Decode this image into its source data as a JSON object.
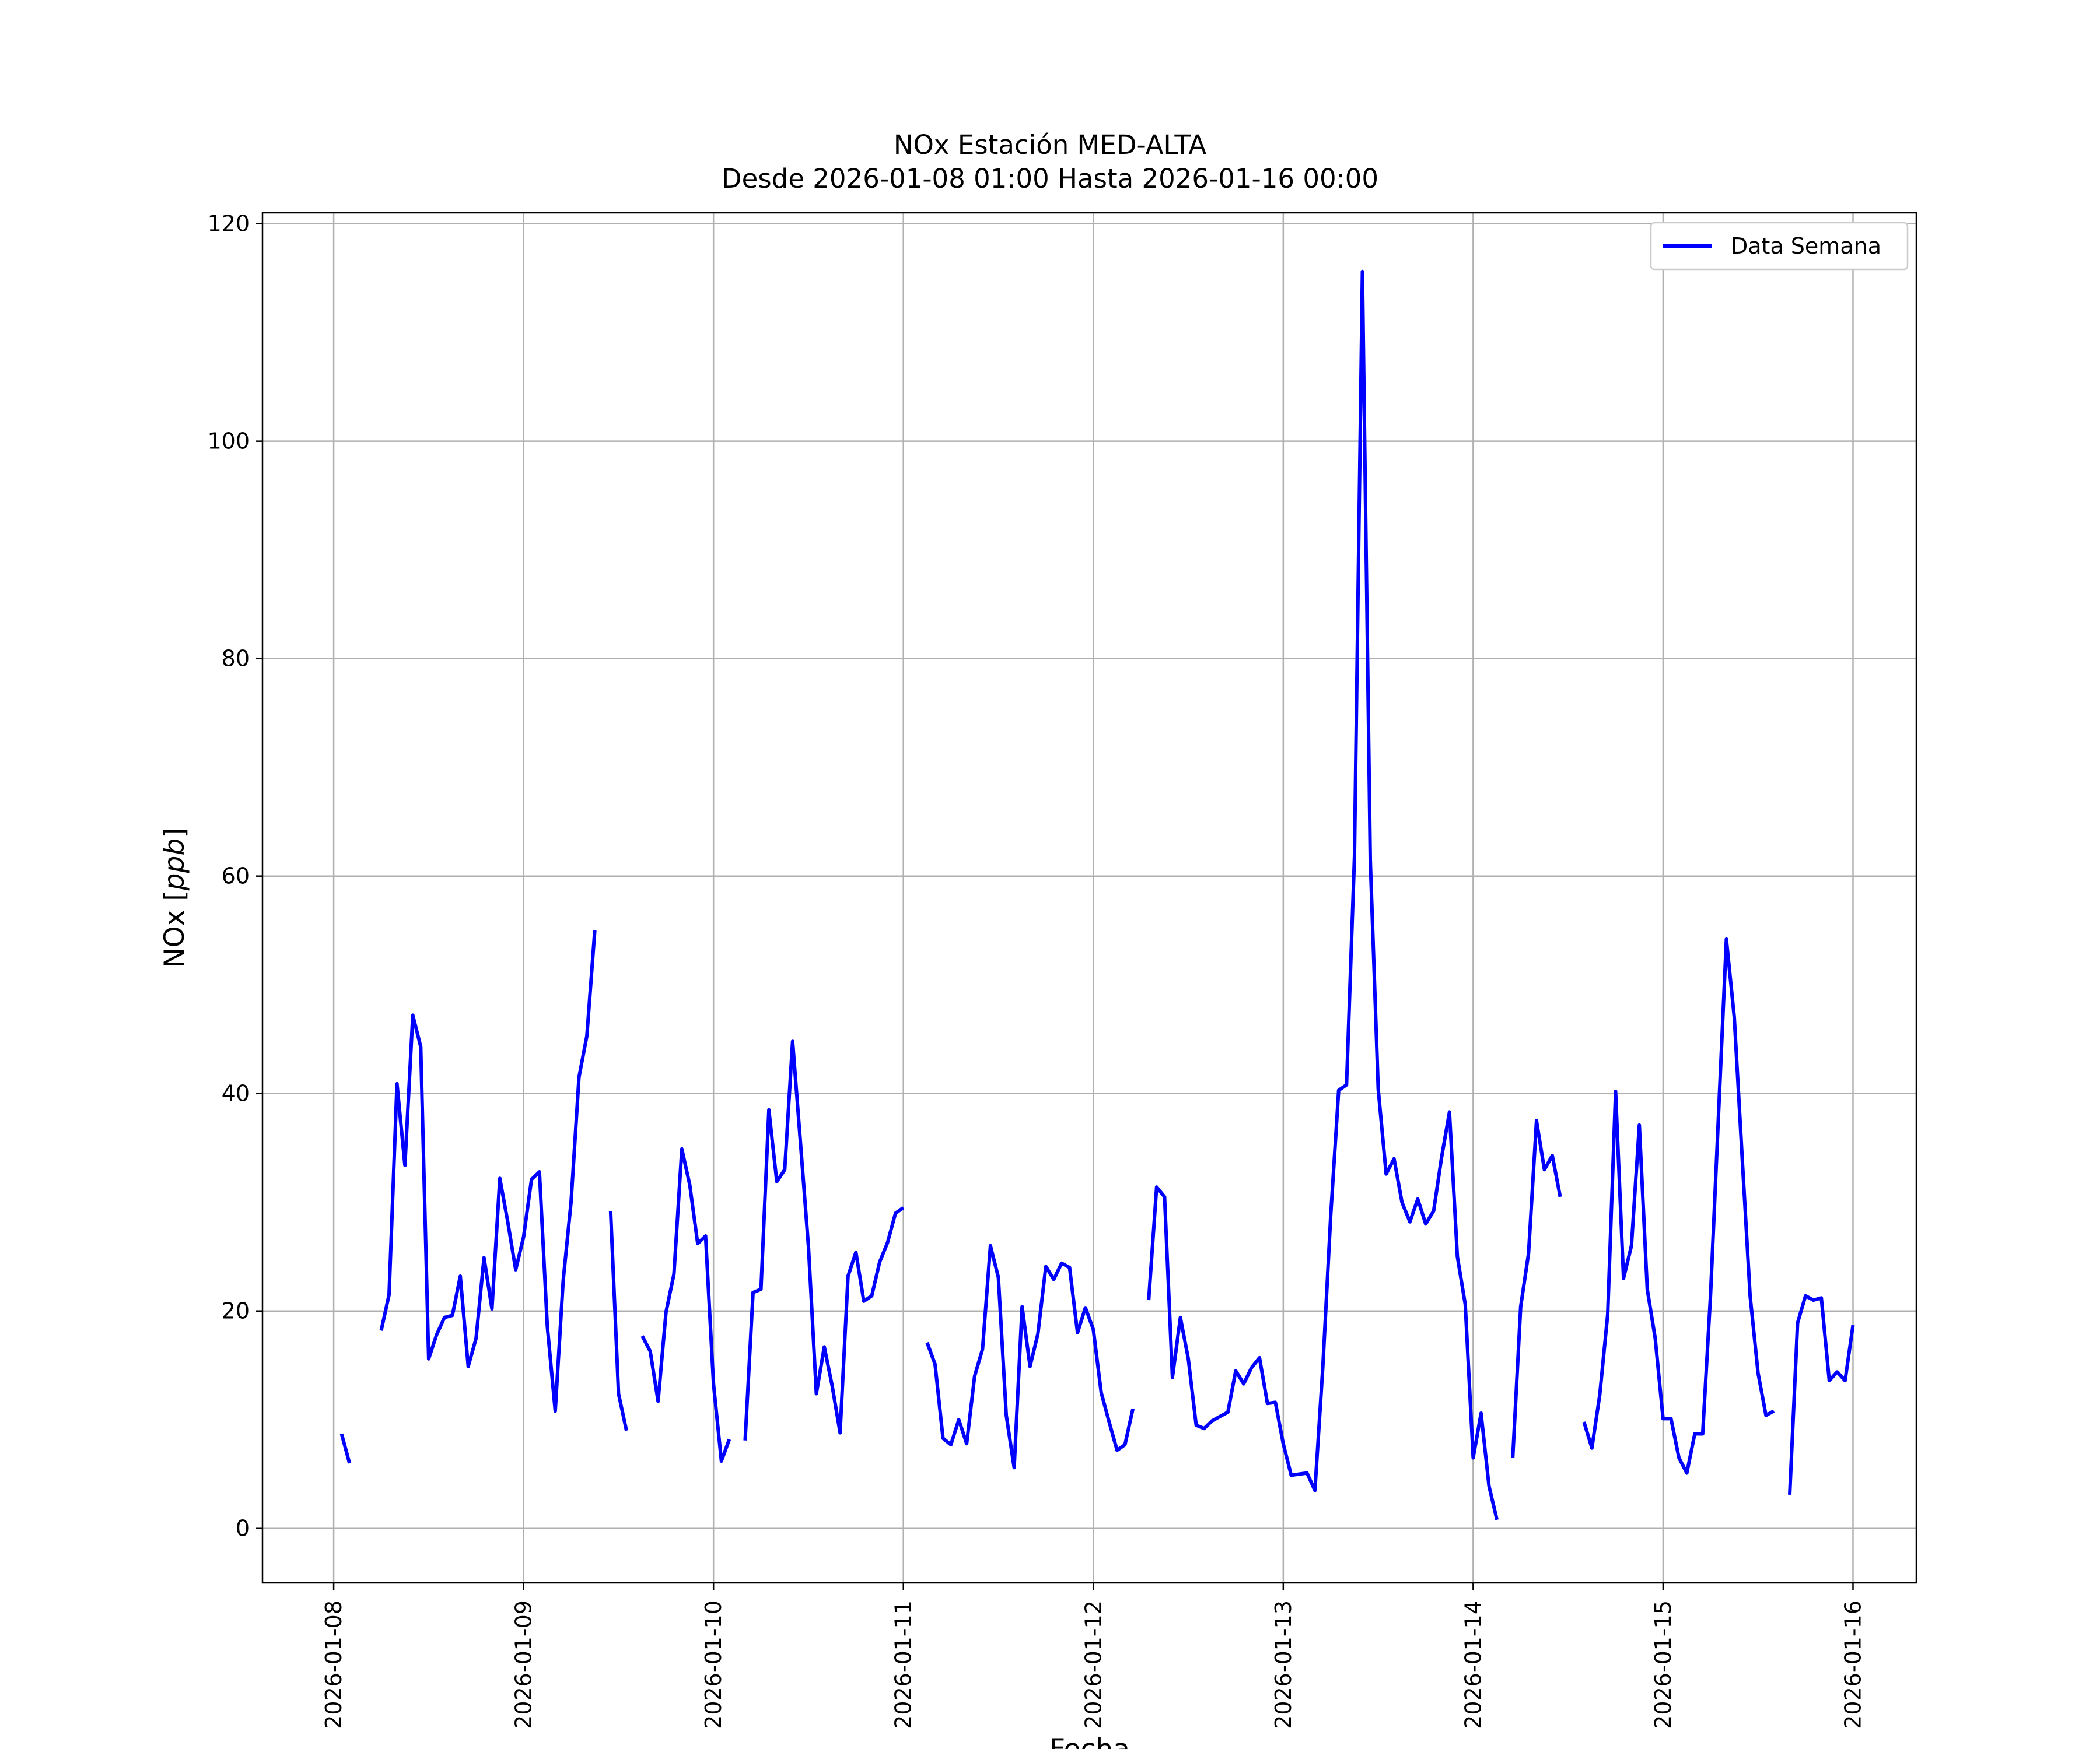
{
  "chart_data": {
    "type": "line",
    "title": "NOx Estación MED-ALTA",
    "subtitle": "Desde 2026-01-08 01:00 Hasta 2026-01-16 00:00",
    "xlabel": "Fecha",
    "ylabel": "NOx [ppb]",
    "ylim": [
      -5,
      121
    ],
    "xlim": [
      "2026-01-07 15:00",
      "2026-01-16 08:00"
    ],
    "x_ticks": [
      "2026-01-08",
      "2026-01-09",
      "2026-01-10",
      "2026-01-11",
      "2026-01-12",
      "2026-01-13",
      "2026-01-14",
      "2026-01-15",
      "2026-01-16"
    ],
    "y_ticks": [
      0,
      20,
      40,
      60,
      80,
      100,
      120
    ],
    "grid": true,
    "legend_position": "top-right",
    "colors": {
      "series": "#0000ff",
      "grid": "#b0b0b0",
      "axes": "#000000"
    },
    "series": [
      {
        "name": "Data Semana",
        "points": [
          [
            "2026-01-08 01:00",
            8.7
          ],
          [
            "2026-01-08 02:00",
            6.0
          ],
          [
            "2026-01-08 03:00",
            null
          ],
          [
            "2026-01-08 04:00",
            null
          ],
          [
            "2026-01-08 05:00",
            null
          ],
          [
            "2026-01-08 06:00",
            18.2
          ],
          [
            "2026-01-08 07:00",
            21.5
          ],
          [
            "2026-01-08 08:00",
            40.9
          ],
          [
            "2026-01-08 09:00",
            33.4
          ],
          [
            "2026-01-08 10:00",
            47.2
          ],
          [
            "2026-01-08 11:00",
            44.3
          ],
          [
            "2026-01-08 12:00",
            15.6
          ],
          [
            "2026-01-08 13:00",
            17.8
          ],
          [
            "2026-01-08 14:00",
            19.4
          ],
          [
            "2026-01-08 15:00",
            19.6
          ],
          [
            "2026-01-08 16:00",
            23.2
          ],
          [
            "2026-01-08 17:00",
            14.9
          ],
          [
            "2026-01-08 18:00",
            17.5
          ],
          [
            "2026-01-08 19:00",
            24.9
          ],
          [
            "2026-01-08 20:00",
            20.2
          ],
          [
            "2026-01-08 21:00",
            32.2
          ],
          [
            "2026-01-08 22:00",
            28.2
          ],
          [
            "2026-01-08 23:00",
            23.8
          ],
          [
            "2026-01-09 00:00",
            26.8
          ],
          [
            "2026-01-09 01:00",
            32.1
          ],
          [
            "2026-01-09 02:00",
            32.8
          ],
          [
            "2026-01-09 03:00",
            18.6
          ],
          [
            "2026-01-09 04:00",
            10.8
          ],
          [
            "2026-01-09 05:00",
            22.8
          ],
          [
            "2026-01-09 06:00",
            30.0
          ],
          [
            "2026-01-09 07:00",
            41.5
          ],
          [
            "2026-01-09 08:00",
            45.3
          ],
          [
            "2026-01-09 09:00",
            55.0
          ],
          [
            "2026-01-09 10:00",
            null
          ],
          [
            "2026-01-09 11:00",
            29.2
          ],
          [
            "2026-01-09 12:00",
            12.4
          ],
          [
            "2026-01-09 13:00",
            9.0
          ],
          [
            "2026-01-09 14:00",
            null
          ],
          [
            "2026-01-09 15:00",
            17.7
          ],
          [
            "2026-01-09 16:00",
            16.3
          ],
          [
            "2026-01-09 17:00",
            11.7
          ],
          [
            "2026-01-09 18:00",
            19.9
          ],
          [
            "2026-01-09 19:00",
            23.4
          ],
          [
            "2026-01-09 20:00",
            34.9
          ],
          [
            "2026-01-09 21:00",
            31.6
          ],
          [
            "2026-01-09 22:00",
            26.2
          ],
          [
            "2026-01-09 23:00",
            26.9
          ],
          [
            "2026-01-10 00:00",
            13.3
          ],
          [
            "2026-01-10 01:00",
            6.2
          ],
          [
            "2026-01-10 02:00",
            8.2
          ],
          [
            "2026-01-10 03:00",
            null
          ],
          [
            "2026-01-10 04:00",
            8.1
          ],
          [
            "2026-01-10 05:00",
            21.7
          ],
          [
            "2026-01-10 06:00",
            22.0
          ],
          [
            "2026-01-10 07:00",
            38.5
          ],
          [
            "2026-01-10 08:00",
            31.9
          ],
          [
            "2026-01-10 09:00",
            33.0
          ],
          [
            "2026-01-10 10:00",
            44.8
          ],
          [
            "2026-01-10 11:00",
            35.4
          ],
          [
            "2026-01-10 12:00",
            25.9
          ],
          [
            "2026-01-10 13:00",
            12.4
          ],
          [
            "2026-01-10 14:00",
            16.7
          ],
          [
            "2026-01-10 15:00",
            13.1
          ],
          [
            "2026-01-10 16:00",
            8.8
          ],
          [
            "2026-01-10 17:00",
            23.2
          ],
          [
            "2026-01-10 18:00",
            25.4
          ],
          [
            "2026-01-10 19:00",
            20.9
          ],
          [
            "2026-01-10 20:00",
            21.4
          ],
          [
            "2026-01-10 21:00",
            24.5
          ],
          [
            "2026-01-10 22:00",
            26.3
          ],
          [
            "2026-01-10 23:00",
            29.0
          ],
          [
            "2026-01-11 00:00",
            29.5
          ],
          [
            "2026-01-11 01:00",
            null
          ],
          [
            "2026-01-11 02:00",
            null
          ],
          [
            "2026-01-11 03:00",
            17.1
          ],
          [
            "2026-01-11 04:00",
            15.1
          ],
          [
            "2026-01-11 05:00",
            8.3
          ],
          [
            "2026-01-11 06:00",
            7.7
          ],
          [
            "2026-01-11 07:00",
            10.0
          ],
          [
            "2026-01-11 08:00",
            7.8
          ],
          [
            "2026-01-11 09:00",
            14.0
          ],
          [
            "2026-01-11 10:00",
            16.5
          ],
          [
            "2026-01-11 11:00",
            26.0
          ],
          [
            "2026-01-11 12:00",
            23.1
          ],
          [
            "2026-01-11 13:00",
            10.4
          ],
          [
            "2026-01-11 14:00",
            5.6
          ],
          [
            "2026-01-11 15:00",
            20.4
          ],
          [
            "2026-01-11 16:00",
            14.9
          ],
          [
            "2026-01-11 17:00",
            17.9
          ],
          [
            "2026-01-11 18:00",
            24.1
          ],
          [
            "2026-01-11 19:00",
            22.9
          ],
          [
            "2026-01-11 20:00",
            24.4
          ],
          [
            "2026-01-11 21:00",
            24.0
          ],
          [
            "2026-01-11 22:00",
            18.0
          ],
          [
            "2026-01-11 23:00",
            20.3
          ],
          [
            "2026-01-12 00:00",
            18.3
          ],
          [
            "2026-01-12 01:00",
            12.5
          ],
          [
            "2026-01-12 02:00",
            9.8
          ],
          [
            "2026-01-12 03:00",
            7.2
          ],
          [
            "2026-01-12 04:00",
            7.7
          ],
          [
            "2026-01-12 05:00",
            11.0
          ],
          [
            "2026-01-12 06:00",
            null
          ],
          [
            "2026-01-12 07:00",
            21.0
          ],
          [
            "2026-01-12 08:00",
            31.4
          ],
          [
            "2026-01-12 09:00",
            30.5
          ],
          [
            "2026-01-12 10:00",
            13.9
          ],
          [
            "2026-01-12 11:00",
            19.4
          ],
          [
            "2026-01-12 12:00",
            15.6
          ],
          [
            "2026-01-12 13:00",
            9.5
          ],
          [
            "2026-01-12 14:00",
            9.2
          ],
          [
            "2026-01-12 15:00",
            9.9
          ],
          [
            "2026-01-12 16:00",
            10.3
          ],
          [
            "2026-01-12 17:00",
            10.7
          ],
          [
            "2026-01-12 18:00",
            14.5
          ],
          [
            "2026-01-12 19:00",
            13.3
          ],
          [
            "2026-01-12 20:00",
            14.8
          ],
          [
            "2026-01-12 21:00",
            15.7
          ],
          [
            "2026-01-12 22:00",
            11.5
          ],
          [
            "2026-01-12 23:00",
            11.6
          ],
          [
            "2026-01-13 00:00",
            7.8
          ],
          [
            "2026-01-13 01:00",
            4.9
          ],
          [
            "2026-01-13 02:00",
            5.0
          ],
          [
            "2026-01-13 03:00",
            5.1
          ],
          [
            "2026-01-13 04:00",
            3.5
          ],
          [
            "2026-01-13 05:00",
            14.9
          ],
          [
            "2026-01-13 06:00",
            28.8
          ],
          [
            "2026-01-13 07:00",
            40.3
          ],
          [
            "2026-01-13 08:00",
            40.8
          ],
          [
            "2026-01-13 09:00",
            61.8
          ],
          [
            "2026-01-13 10:00",
            115.6
          ],
          [
            "2026-01-13 11:00",
            61.5
          ],
          [
            "2026-01-13 12:00",
            40.4
          ],
          [
            "2026-01-13 13:00",
            32.6
          ],
          [
            "2026-01-13 14:00",
            34.0
          ],
          [
            "2026-01-13 15:00",
            30.0
          ],
          [
            "2026-01-13 16:00",
            28.2
          ],
          [
            "2026-01-13 17:00",
            30.3
          ],
          [
            "2026-01-13 18:00",
            28.0
          ],
          [
            "2026-01-13 19:00",
            29.2
          ],
          [
            "2026-01-13 20:00",
            34.1
          ],
          [
            "2026-01-13 21:00",
            38.3
          ],
          [
            "2026-01-13 22:00",
            25.0
          ],
          [
            "2026-01-13 23:00",
            20.6
          ],
          [
            "2026-01-14 00:00",
            6.5
          ],
          [
            "2026-01-14 01:00",
            10.6
          ],
          [
            "2026-01-14 02:00",
            3.9
          ],
          [
            "2026-01-14 03:00",
            0.8
          ],
          [
            "2026-01-14 04:00",
            null
          ],
          [
            "2026-01-14 05:00",
            6.5
          ],
          [
            "2026-01-14 06:00",
            20.4
          ],
          [
            "2026-01-14 07:00",
            25.3
          ],
          [
            "2026-01-14 08:00",
            37.5
          ],
          [
            "2026-01-14 09:00",
            33.0
          ],
          [
            "2026-01-14 10:00",
            34.3
          ],
          [
            "2026-01-14 11:00",
            30.5
          ],
          [
            "2026-01-14 12:00",
            null
          ],
          [
            "2026-01-14 13:00",
            null
          ],
          [
            "2026-01-14 14:00",
            9.8
          ],
          [
            "2026-01-14 15:00",
            7.4
          ],
          [
            "2026-01-14 16:00",
            12.3
          ],
          [
            "2026-01-14 17:00",
            19.7
          ],
          [
            "2026-01-14 18:00",
            40.2
          ],
          [
            "2026-01-14 19:00",
            23.0
          ],
          [
            "2026-01-14 20:00",
            26.0
          ],
          [
            "2026-01-14 21:00",
            37.1
          ],
          [
            "2026-01-14 22:00",
            22.0
          ],
          [
            "2026-01-14 23:00",
            17.5
          ],
          [
            "2026-01-15 00:00",
            10.1
          ],
          [
            "2026-01-15 01:00",
            10.1
          ],
          [
            "2026-01-15 02:00",
            6.5
          ],
          [
            "2026-01-15 03:00",
            5.1
          ],
          [
            "2026-01-15 04:00",
            8.7
          ],
          [
            "2026-01-15 05:00",
            8.7
          ],
          [
            "2026-01-15 06:00",
            21.5
          ],
          [
            "2026-01-15 07:00",
            38.0
          ],
          [
            "2026-01-15 08:00",
            54.2
          ],
          [
            "2026-01-15 09:00",
            47.0
          ],
          [
            "2026-01-15 10:00",
            34.0
          ],
          [
            "2026-01-15 11:00",
            21.4
          ],
          [
            "2026-01-15 12:00",
            14.3
          ],
          [
            "2026-01-15 13:00",
            10.4
          ],
          [
            "2026-01-15 14:00",
            10.8
          ],
          [
            "2026-01-15 15:00",
            null
          ],
          [
            "2026-01-15 16:00",
            3.1
          ],
          [
            "2026-01-15 17:00",
            18.9
          ],
          [
            "2026-01-15 18:00",
            21.4
          ],
          [
            "2026-01-15 19:00",
            21.0
          ],
          [
            "2026-01-15 20:00",
            21.2
          ],
          [
            "2026-01-15 21:00",
            13.6
          ],
          [
            "2026-01-15 22:00",
            14.4
          ],
          [
            "2026-01-15 23:00",
            13.6
          ],
          [
            "2026-01-16 00:00",
            18.7
          ]
        ]
      }
    ]
  }
}
